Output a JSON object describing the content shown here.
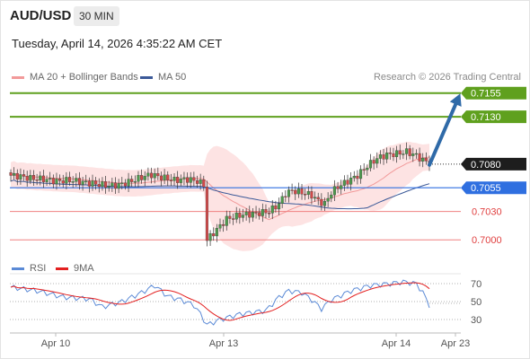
{
  "header": {
    "symbol": "AUD/USD",
    "timeframe": "30 MIN",
    "datetime": "Tuesday, April 14, 2026 4:35:22 AM CET",
    "copyright": "Research © 2026 Trading Central"
  },
  "colors": {
    "resistance": "#5fa01e",
    "pivot_label_bg": "#1d1d1d",
    "support_blue": "#2f6fe0",
    "support_red": "#f08080",
    "ma20": "#f29a9a",
    "bands_fill": "#fde3e3",
    "ma50": "#3b5998",
    "candle_up": "#4d9a4d",
    "candle_down": "#d24a4a",
    "arrow": "#2f6aa8",
    "rsi": "#5b8ad6",
    "rsi_ma": "#e32020"
  },
  "chart_data": [
    {
      "type": "candlestick",
      "legend": [
        {
          "name": "MA 20 + Bollinger Bands",
          "color": "#f29a9a"
        },
        {
          "name": "MA 50",
          "color": "#3b5998"
        }
      ],
      "ylim": [
        0.6986,
        0.7168
      ],
      "price_levels": [
        {
          "value": 0.7155,
          "label": "0.7155",
          "kind": "resistance"
        },
        {
          "value": 0.713,
          "label": "0.7130",
          "kind": "resistance"
        },
        {
          "value": 0.708,
          "label": "0.7080",
          "kind": "pivot"
        },
        {
          "value": 0.7055,
          "label": "0.7055",
          "kind": "support-major"
        },
        {
          "value": 0.703,
          "label": "0.7030",
          "kind": "support"
        },
        {
          "value": 0.7,
          "label": "0.7000",
          "kind": "support"
        }
      ],
      "forecast_arrow": {
        "from": 0.708,
        "to": 0.7155
      }
    },
    {
      "type": "line",
      "legend": [
        {
          "name": "RSI",
          "color": "#5b8ad6"
        },
        {
          "name": "9MA",
          "color": "#e32020"
        }
      ],
      "ylim": [
        20,
        80
      ],
      "y_ticks": [
        "70",
        "50",
        "30"
      ],
      "x_ticks": [
        "Apr 10",
        "Apr 13",
        "Apr 14",
        "Apr 23"
      ]
    }
  ]
}
